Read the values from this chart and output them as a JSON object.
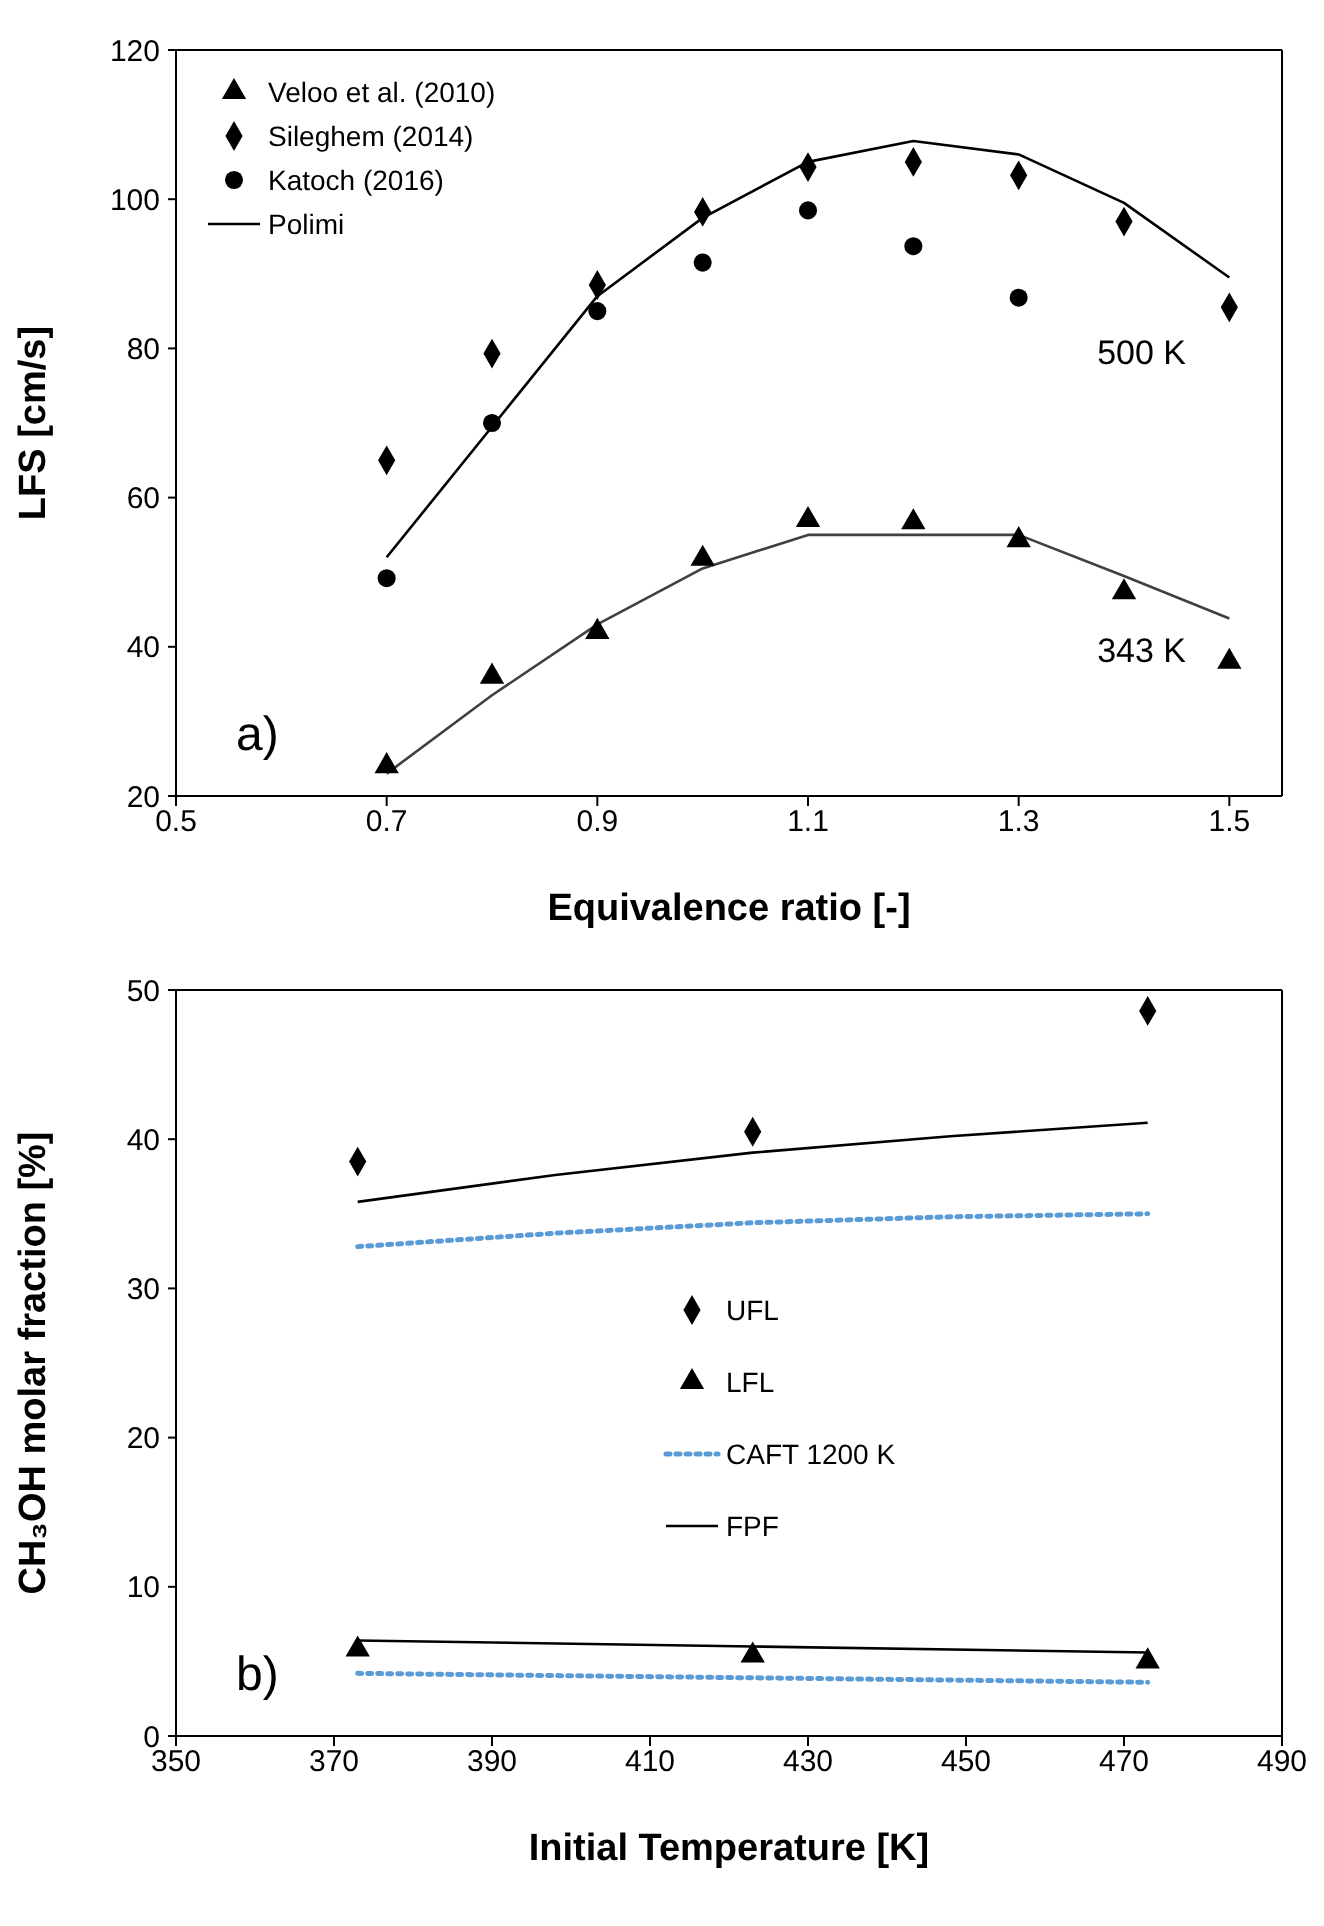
{
  "chart_data": [
    {
      "type": "scatter",
      "xlabel": "Equivalence ratio [-]",
      "ylabel": "LFS [cm/s]",
      "xlim": [
        0.5,
        1.55
      ],
      "xticks": [
        0.5,
        0.7,
        0.9,
        1.1,
        1.3,
        1.5
      ],
      "ylim": [
        20,
        120
      ],
      "yticks": [
        20,
        40,
        60,
        80,
        100,
        120
      ],
      "grid": false,
      "legend": "top left",
      "x": [
        0.7,
        0.8,
        0.9,
        1.0,
        1.1,
        1.2,
        1.3,
        1.4,
        1.5
      ],
      "series": [
        {
          "name": "Veloo et al. (2010)",
          "color": "#000000",
          "marker": "triangle",
          "values": [
            24,
            36,
            42,
            51.8,
            57,
            56.7,
            54.3,
            47.3,
            38
          ]
        },
        {
          "name": "Sileghem  (2014)",
          "color": "#000000",
          "marker": "diamond",
          "values": [
            65,
            79.3,
            88.5,
            98.3,
            104.3,
            105,
            103.2,
            97,
            85.5
          ]
        },
        {
          "name": "Katoch (2016)",
          "color": "#000000",
          "marker": "circle",
          "values": [
            49.2,
            70,
            85,
            91.5,
            98.5,
            93.7,
            86.8,
            null,
            null
          ]
        },
        {
          "name": "Polimi",
          "type": "line",
          "color": "#000000",
          "marker": "none",
          "line_style": "solid",
          "values": [
            52,
            69.5,
            87,
            97.5,
            105,
            107.8,
            106,
            99.5,
            89.5
          ]
        },
        {
          "type": "line",
          "color": "#404040",
          "marker": "none",
          "line_style": "solid",
          "values": [
            23,
            33.5,
            43,
            50.5,
            55,
            55,
            55,
            49.5,
            43.8
          ]
        }
      ],
      "annotations": [
        "a)",
        "500 K",
        "343 K"
      ]
    },
    {
      "type": "scatter",
      "xlabel": "Initial Temperature [K]",
      "ylabel": "CH₃OH molar fraction [%]",
      "xlim": [
        350,
        490
      ],
      "xticks": [
        350,
        370,
        390,
        410,
        430,
        450,
        470,
        490
      ],
      "ylim": [
        0,
        50
      ],
      "yticks": [
        0,
        10,
        20,
        30,
        40,
        50
      ],
      "grid": false,
      "legend": "center",
      "x": [
        373,
        423,
        473
      ],
      "series": [
        {
          "name": "UFL",
          "color": "#000000",
          "marker": "diamond",
          "values": [
            38.5,
            40.5,
            48.6
          ]
        },
        {
          "name": "LFL",
          "color": "#000000",
          "marker": "triangle",
          "values": [
            5.8,
            5.4,
            5.0
          ]
        },
        {
          "name": "CAFT 1200 K",
          "type": "line",
          "color": "#5b9bd5",
          "marker": "none",
          "line_style": "dotted",
          "x": [
            373,
            398,
            423,
            448,
            473
          ],
          "values": [
            32.8,
            33.7,
            34.4,
            34.8,
            35.0
          ]
        },
        {
          "type": "line",
          "color": "#5b9bd5",
          "marker": "none",
          "line_style": "dotted",
          "x": [
            373,
            423,
            473
          ],
          "values": [
            4.2,
            3.9,
            3.6
          ]
        },
        {
          "name": "FPF",
          "type": "line",
          "color": "#000000",
          "marker": "none",
          "line_style": "solid",
          "x": [
            373,
            398,
            423,
            448,
            473
          ],
          "values": [
            35.8,
            37.6,
            39.1,
            40.2,
            41.1
          ]
        },
        {
          "type": "line",
          "color": "#000000",
          "marker": "none",
          "line_style": "solid",
          "x": [
            373,
            423,
            473
          ],
          "values": [
            6.4,
            6.0,
            5.6
          ]
        }
      ],
      "annotations": [
        "b)"
      ]
    }
  ]
}
